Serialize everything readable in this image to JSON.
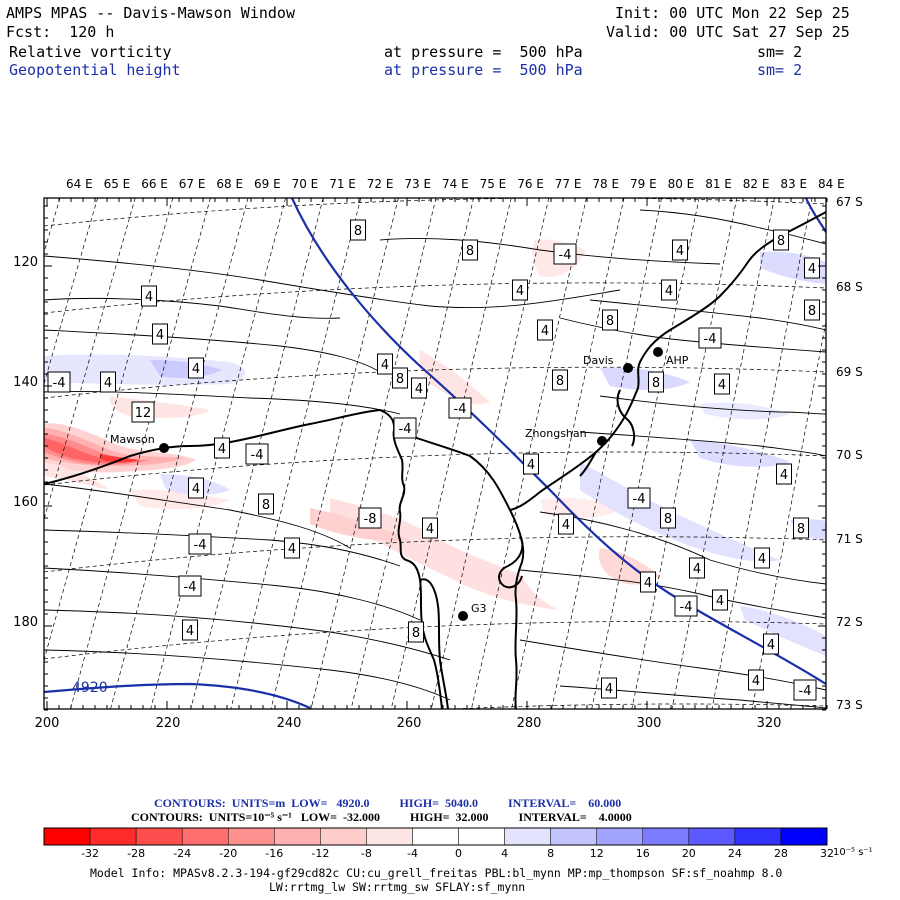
{
  "header": {
    "title": "AMPS MPAS -- Davis-Mawson Window",
    "fcst": "Fcst:  120 h",
    "init": "Init: 00 UTC Mon 22 Sep 25",
    "valid": "Valid: 00 UTC Sat 27 Sep 25",
    "field1": {
      "name": "Relative vorticity",
      "level": "at pressure =  500 hPa",
      "sm": "sm= 2"
    },
    "field2": {
      "name": "Geopotential height",
      "level": "at pressure =  500 hPa",
      "sm": "sm= 2"
    }
  },
  "map": {
    "top_labels": [
      "64 E",
      "65 E",
      "66 E",
      "67 E",
      "68 E",
      "69 E",
      "70 E",
      "71 E",
      "72 E",
      "73 E",
      "74 E",
      "75 E",
      "76 E",
      "77 E",
      "78 E",
      "79 E",
      "80 E",
      "81 E",
      "82 E",
      "83 E",
      "84 E"
    ],
    "right_labels": [
      "67 S",
      "68 S",
      "69 S",
      "70 S",
      "71 S",
      "72 S",
      "73 S"
    ],
    "x_ticks": [
      "200",
      "220",
      "240",
      "260",
      "280",
      "300",
      "320"
    ],
    "y_ticks": [
      "120",
      "140",
      "160",
      "180"
    ],
    "stations": [
      "Mawson",
      "Davis",
      "Zhongshan",
      "G3",
      "AHP"
    ],
    "height_contour_label": "4920",
    "vorticity_labels": [
      "-4",
      "4",
      "4",
      "-4",
      "4",
      "4",
      "8",
      "12",
      "4",
      "-4",
      "4",
      "8",
      "4",
      "-4",
      "-4",
      "8",
      "4",
      "-4",
      "-4",
      "4",
      "8",
      "4",
      "4",
      "-4",
      "8",
      "4",
      "4",
      "-4",
      "4",
      "4",
      "4",
      "-4",
      "4",
      "8",
      "4",
      "8",
      "4",
      "4",
      "8",
      "4",
      "4",
      "8",
      "4",
      "4",
      "8",
      "8",
      "4",
      "4",
      "8",
      "8",
      "4",
      "4",
      "-8",
      "-4"
    ],
    "colors": {
      "height_contour": "#1a2fa8",
      "coast": "#000000",
      "neg_fill": "#f4a0a0",
      "pos_fill": "#b8b8f4"
    }
  },
  "contours_info": {
    "line1": "CONTOURS:  UNITS=m  LOW=   4920.0          HIGH=  5040.0          INTERVAL=    60.000",
    "line2": "CONTOURS:  UNITS=10⁻⁵ s⁻¹   LOW=  -32.000          HIGH=  32.000          INTERVAL=    4.0000"
  },
  "colorbar": {
    "labels": [
      "-32",
      "-28",
      "-24",
      "-20",
      "-16",
      "-12",
      "-8",
      "-4",
      "0",
      "4",
      "8",
      "12",
      "16",
      "20",
      "24",
      "28",
      "32"
    ],
    "unit": "10⁻⁵ s⁻¹",
    "colors": [
      "#ff0000",
      "#ff2b2b",
      "#ff4e4e",
      "#ff6e6e",
      "#ff9090",
      "#ffb0b0",
      "#ffcccc",
      "#ffe6e6",
      "#ffffff",
      "#ffffff",
      "#e4e4ff",
      "#c4c4ff",
      "#a2a2ff",
      "#7c7cff",
      "#5a5aff",
      "#3232ff",
      "#0000ff"
    ]
  },
  "model_info": {
    "line1": "Model Info: MPASv8.2.3-194-gf29cd82c CU:cu_grell_freitas PBL:bl_mynn MP:mp_thompson SF:sf_noahmp 8.0",
    "line2": "LW:rrtmg_lw SW:rrtmg_sw SFLAY:sf_mynn"
  }
}
